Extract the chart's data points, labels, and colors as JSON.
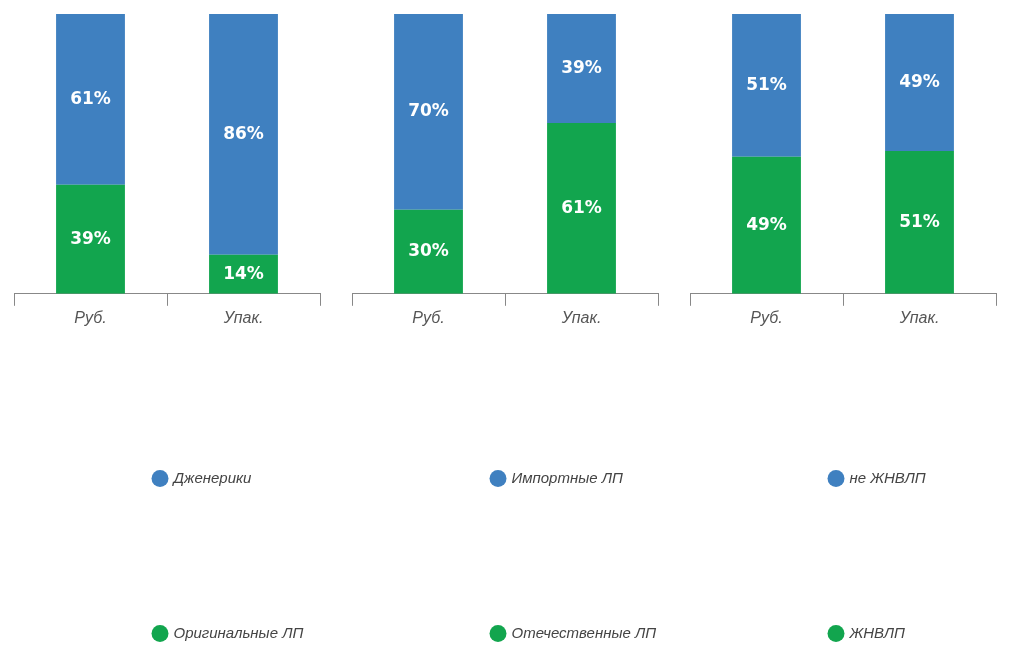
{
  "chart_data": [
    {
      "type": "bar",
      "stacked": true,
      "categories": [
        "Руб.",
        "Упак."
      ],
      "legend": "bottom",
      "grid": false,
      "tick_labels": "x",
      "series": [
        {
          "name": "Оригинальные ЛП",
          "color": "#12a54e",
          "values": [
            39,
            14
          ],
          "value_labels": [
            "39%",
            "14%"
          ]
        },
        {
          "name": "Дженерики",
          "color": "#3f80c0",
          "values": [
            61,
            86
          ],
          "value_labels": [
            "61%",
            "86%"
          ]
        }
      ]
    },
    {
      "type": "bar",
      "stacked": true,
      "categories": [
        "Руб.",
        "Упак."
      ],
      "legend": "bottom",
      "grid": false,
      "tick_labels": "x",
      "series": [
        {
          "name": "Отечественные ЛП",
          "color": "#12a54e",
          "values": [
            30,
            61
          ],
          "value_labels": [
            "30%",
            "61%"
          ]
        },
        {
          "name": "Импортные ЛП",
          "color": "#3f80c0",
          "values": [
            70,
            39
          ],
          "value_labels": [
            "70%",
            "39%"
          ]
        }
      ]
    },
    {
      "type": "bar",
      "stacked": true,
      "categories": [
        "Руб.",
        "Упак."
      ],
      "legend": "bottom",
      "grid": false,
      "tick_labels": "x",
      "series": [
        {
          "name": "ЖНВЛП",
          "color": "#12a54e",
          "values": [
            49,
            51
          ],
          "value_labels": [
            "49%",
            "51%"
          ]
        },
        {
          "name": "не ЖНВЛП",
          "color": "#3f80c0",
          "values": [
            51,
            49
          ],
          "value_labels": [
            "51%",
            "49%"
          ]
        }
      ]
    }
  ]
}
